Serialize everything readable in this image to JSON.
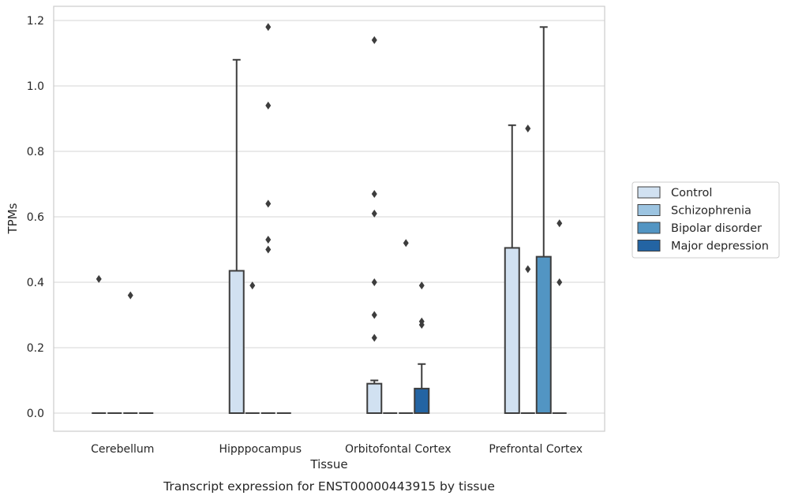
{
  "chart_data": {
    "type": "box",
    "caption": "Transcript expression for ENST00000443915 by tissue",
    "xlabel": "Tissue",
    "ylabel": "TPMs",
    "ylim": [
      -0.058,
      1.24
    ],
    "yticks": [
      "0.0",
      "0.2",
      "0.4",
      "0.6",
      "0.8",
      "1.0",
      "1.2"
    ],
    "categories": [
      "Cerebellum",
      "Hipppocampus",
      "Orbitofontal Cortex",
      "Prefrontal Cortex"
    ],
    "grid": true,
    "legend_position": "right",
    "series": [
      {
        "name": "Control",
        "color": "#d1e1f1",
        "boxes": [
          {
            "q1": 0,
            "median": 0,
            "q3": 0,
            "whisker_low": 0,
            "whisker_high": 0,
            "outliers": [
              0.41
            ]
          },
          {
            "q1": 0,
            "median": 0,
            "q3": 0.435,
            "whisker_low": 0,
            "whisker_high": 1.08,
            "outliers": []
          },
          {
            "q1": 0,
            "median": 0,
            "q3": 0.09,
            "whisker_low": 0,
            "whisker_high": 0.1,
            "outliers": [
              1.14,
              0.67,
              0.61,
              0.4,
              0.3,
              0.23
            ]
          },
          {
            "q1": 0,
            "median": 0,
            "q3": 0.505,
            "whisker_low": 0,
            "whisker_high": 0.88,
            "outliers": []
          }
        ]
      },
      {
        "name": "Schizophrenia",
        "color": "#9cc4e1",
        "boxes": [
          {
            "q1": 0,
            "median": 0,
            "q3": 0,
            "whisker_low": 0,
            "whisker_high": 0,
            "outliers": []
          },
          {
            "q1": 0,
            "median": 0,
            "q3": 0,
            "whisker_low": 0,
            "whisker_high": 0,
            "outliers": [
              0.39
            ]
          },
          {
            "q1": 0,
            "median": 0,
            "q3": 0,
            "whisker_low": 0,
            "whisker_high": 0,
            "outliers": []
          },
          {
            "q1": 0,
            "median": 0,
            "q3": 0,
            "whisker_low": 0,
            "whisker_high": 0,
            "outliers": [
              0.87,
              0.44
            ]
          }
        ]
      },
      {
        "name": "Bipolar disorder",
        "color": "#5295c3",
        "boxes": [
          {
            "q1": 0,
            "median": 0,
            "q3": 0,
            "whisker_low": 0,
            "whisker_high": 0,
            "outliers": [
              0.36
            ]
          },
          {
            "q1": 0,
            "median": 0,
            "q3": 0,
            "whisker_low": 0,
            "whisker_high": 0,
            "outliers": [
              1.18,
              0.94,
              0.64,
              0.53,
              0.5
            ]
          },
          {
            "q1": 0,
            "median": 0,
            "q3": 0,
            "whisker_low": 0,
            "whisker_high": 0,
            "outliers": [
              0.52
            ]
          },
          {
            "q1": 0,
            "median": 0,
            "q3": 0.478,
            "whisker_low": 0,
            "whisker_high": 1.18,
            "outliers": []
          }
        ]
      },
      {
        "name": "Major depression",
        "color": "#2364a3",
        "boxes": [
          {
            "q1": 0,
            "median": 0,
            "q3": 0,
            "whisker_low": 0,
            "whisker_high": 0,
            "outliers": []
          },
          {
            "q1": 0,
            "median": 0,
            "q3": 0,
            "whisker_low": 0,
            "whisker_high": 0,
            "outliers": []
          },
          {
            "q1": 0,
            "median": 0,
            "q3": 0.075,
            "whisker_low": 0,
            "whisker_high": 0.15,
            "outliers": [
              0.39,
              0.28,
              0.27
            ]
          },
          {
            "q1": 0,
            "median": 0,
            "q3": 0,
            "whisker_low": 0,
            "whisker_high": 0,
            "outliers": [
              0.58,
              0.4
            ]
          }
        ]
      }
    ]
  }
}
